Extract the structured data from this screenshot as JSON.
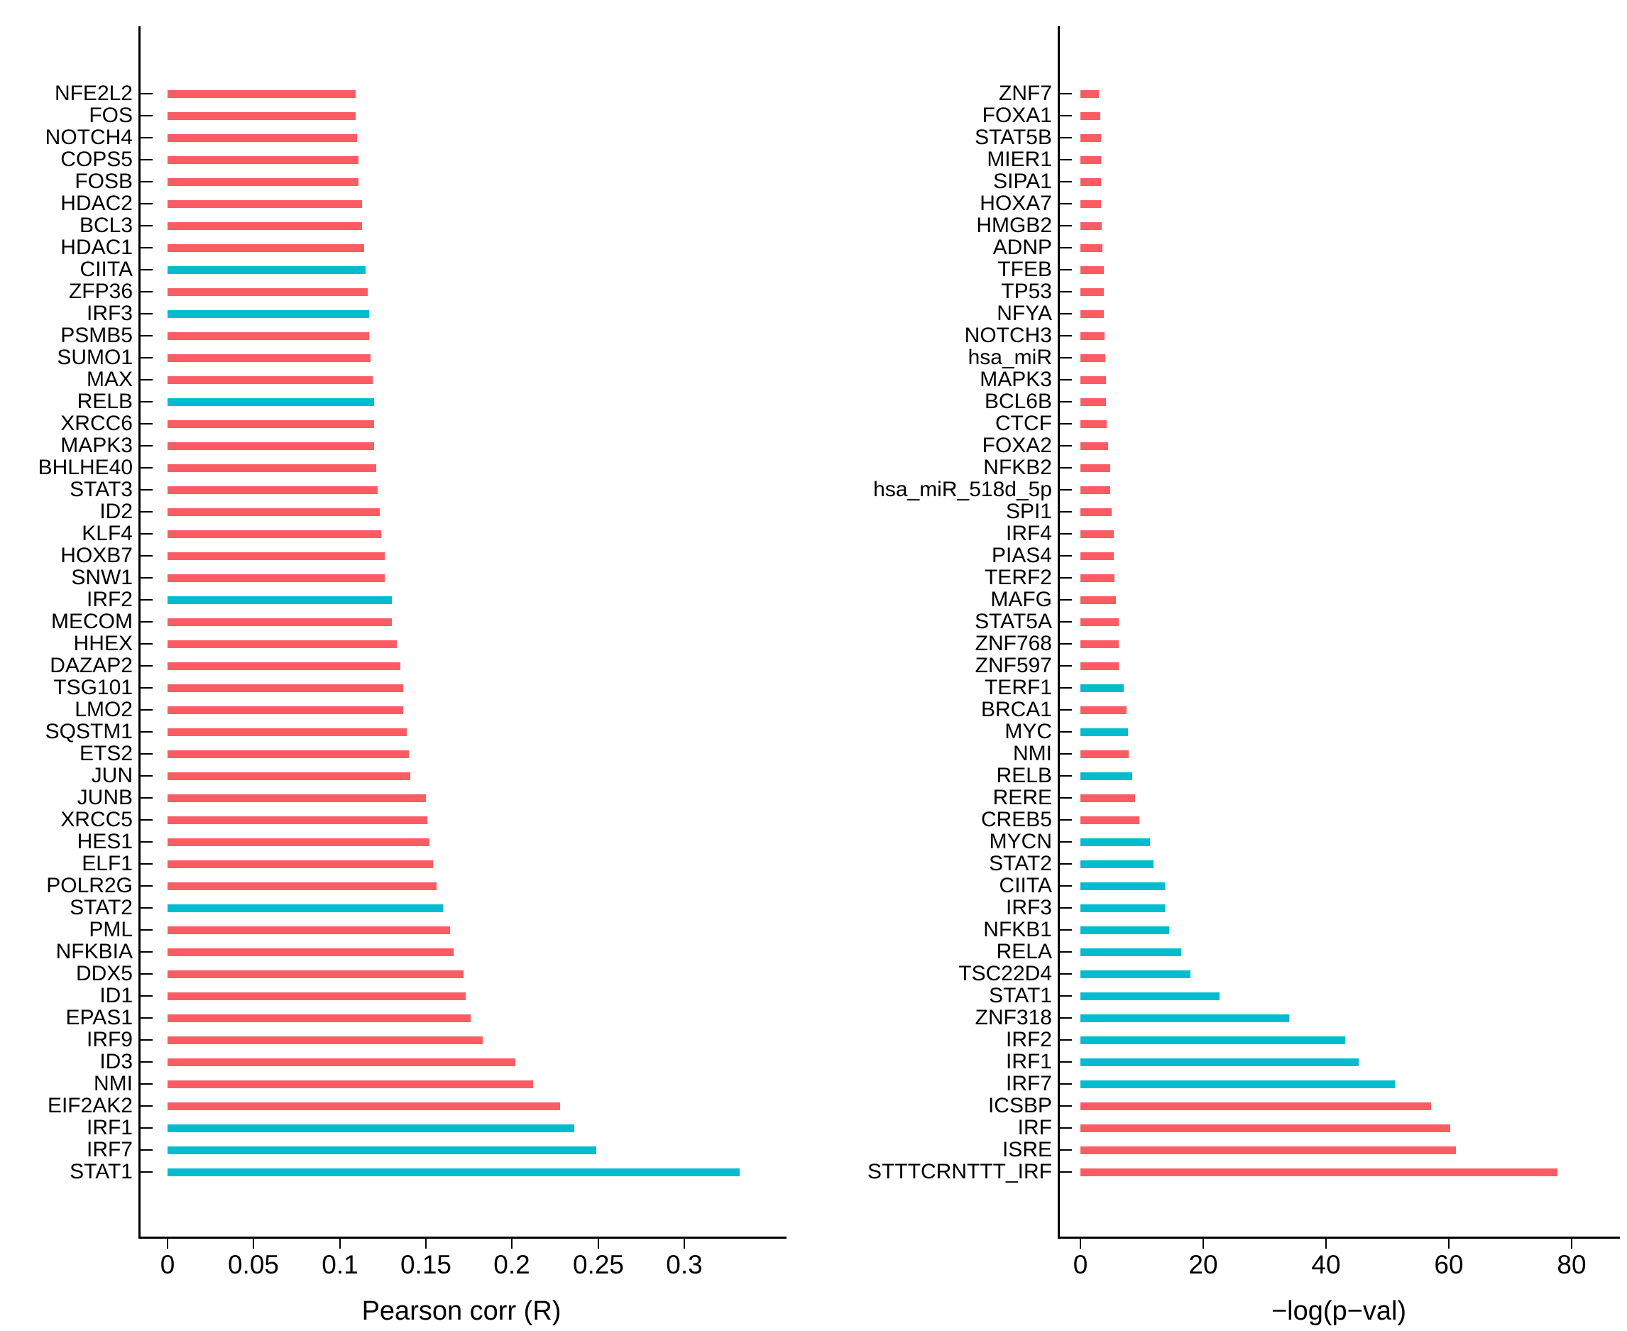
{
  "page": {
    "background": "#ffffff"
  },
  "palette": {
    "bar_red": "#FB5C64",
    "bar_cyan": "#00BCCE",
    "axis": "#000000"
  },
  "chart_data": [
    {
      "id": "pearson-correlation-chart",
      "type": "bar",
      "orientation": "horizontal",
      "title": "",
      "xlabel": "Pearson corr (R)",
      "ylabel": "",
      "xlim": [
        0,
        0.359
      ],
      "grid": false,
      "legend": "none",
      "x_tick_labels": [
        "0",
        "0.05",
        "0.1",
        "0.15",
        "0.2",
        "0.25",
        "0.3"
      ],
      "x_tick_values": [
        0,
        0.05,
        0.1,
        0.15,
        0.2,
        0.25,
        0.3
      ],
      "categories": [
        "NFE2L2",
        "FOS",
        "NOTCH4",
        "COPS5",
        "FOSB",
        "HDAC2",
        "BCL3",
        "HDAC1",
        "CIITA",
        "ZFP36",
        "IRF3",
        "PSMB5",
        "SUMO1",
        "MAX",
        "RELB",
        "XRCC6",
        "MAPK3",
        "BHLHE40",
        "STAT3",
        "ID2",
        "KLF4",
        "HOXB7",
        "SNW1",
        "IRF2",
        "MECOM",
        "HHEX",
        "DAZAP2",
        "TSG101",
        "LMO2",
        "SQSTM1",
        "ETS2",
        "JUN",
        "JUNB",
        "XRCC5",
        "HES1",
        "ELF1",
        "POLR2G",
        "STAT2",
        "PML",
        "NFKBIA",
        "DDX5",
        "ID1",
        "EPAS1",
        "IRF9",
        "ID3",
        "NMI",
        "EIF2AK2",
        "IRF1",
        "IRF7",
        "STAT1"
      ],
      "values": [
        0.109,
        0.109,
        0.11,
        0.111,
        0.111,
        0.113,
        0.113,
        0.114,
        0.115,
        0.116,
        0.117,
        0.117,
        0.118,
        0.119,
        0.12,
        0.12,
        0.12,
        0.121,
        0.122,
        0.123,
        0.124,
        0.126,
        0.126,
        0.13,
        0.13,
        0.133,
        0.135,
        0.137,
        0.137,
        0.139,
        0.14,
        0.141,
        0.15,
        0.151,
        0.152,
        0.154,
        0.156,
        0.16,
        0.164,
        0.166,
        0.172,
        0.173,
        0.176,
        0.183,
        0.202,
        0.212,
        0.228,
        0.236,
        0.249,
        0.332
      ],
      "colors": [
        "red",
        "red",
        "red",
        "red",
        "red",
        "red",
        "red",
        "red",
        "cyan",
        "red",
        "cyan",
        "red",
        "red",
        "red",
        "cyan",
        "red",
        "red",
        "red",
        "red",
        "red",
        "red",
        "red",
        "red",
        "cyan",
        "red",
        "red",
        "red",
        "red",
        "red",
        "red",
        "red",
        "red",
        "red",
        "red",
        "red",
        "red",
        "red",
        "cyan",
        "red",
        "red",
        "red",
        "red",
        "red",
        "red",
        "red",
        "red",
        "red",
        "cyan",
        "cyan",
        "cyan"
      ]
    },
    {
      "id": "log-pvalue-chart",
      "type": "bar",
      "orientation": "horizontal",
      "title": "",
      "xlabel": "−log(p−val)",
      "ylabel": "",
      "xlim": [
        0,
        88
      ],
      "grid": false,
      "legend": "none",
      "x_tick_labels": [
        "0",
        "20",
        "40",
        "60",
        "80"
      ],
      "x_tick_values": [
        0,
        20,
        40,
        60,
        80
      ],
      "categories": [
        "ZNF7",
        "FOXA1",
        "STAT5B",
        "MIER1",
        "SIPA1",
        "HOXA7",
        "HMGB2",
        "ADNP",
        "TFEB",
        "TP53",
        "NFYA",
        "NOTCH3",
        "hsa_miR",
        "MAPK3",
        "BCL6B",
        "CTCF",
        "FOXA2",
        "NFKB2",
        "hsa_miR_518d_5p",
        "SPI1",
        "IRF4",
        "PIAS4",
        "TERF2",
        "MAFG",
        "STAT5A",
        "ZNF768",
        "ZNF597",
        "TERF1",
        "BRCA1",
        "MYC",
        "NMI",
        "RELB",
        "RERE",
        "CREB5",
        "MYCN",
        "STAT2",
        "CIITA",
        "IRF3",
        "NFKB1",
        "RELA",
        "TSC22D4",
        "STAT1",
        "ZNF318",
        "IRF2",
        "IRF1",
        "IRF7",
        "ICSBP",
        "IRF",
        "ISRE",
        "STTTCRNTTT_IRF"
      ],
      "values": [
        3.0,
        3.2,
        3.3,
        3.3,
        3.4,
        3.4,
        3.5,
        3.6,
        3.8,
        3.8,
        3.8,
        3.9,
        4.0,
        4.2,
        4.2,
        4.3,
        4.5,
        4.9,
        4.9,
        5.1,
        5.4,
        5.4,
        5.6,
        5.8,
        6.2,
        6.3,
        6.3,
        7.1,
        7.5,
        7.7,
        7.9,
        8.4,
        8.9,
        9.6,
        11.3,
        11.9,
        13.7,
        13.7,
        14.4,
        16.4,
        17.9,
        22.7,
        34.0,
        43.1,
        45.3,
        51.2,
        57.1,
        60.2,
        61.1,
        77.7
      ],
      "colors": [
        "red",
        "red",
        "red",
        "red",
        "red",
        "red",
        "red",
        "red",
        "red",
        "red",
        "red",
        "red",
        "red",
        "red",
        "red",
        "red",
        "red",
        "red",
        "red",
        "red",
        "red",
        "red",
        "red",
        "red",
        "red",
        "red",
        "red",
        "cyan",
        "red",
        "cyan",
        "red",
        "cyan",
        "red",
        "red",
        "cyan",
        "cyan",
        "cyan",
        "cyan",
        "cyan",
        "cyan",
        "cyan",
        "cyan",
        "cyan",
        "cyan",
        "cyan",
        "cyan",
        "red",
        "red",
        "red",
        "red"
      ]
    }
  ]
}
